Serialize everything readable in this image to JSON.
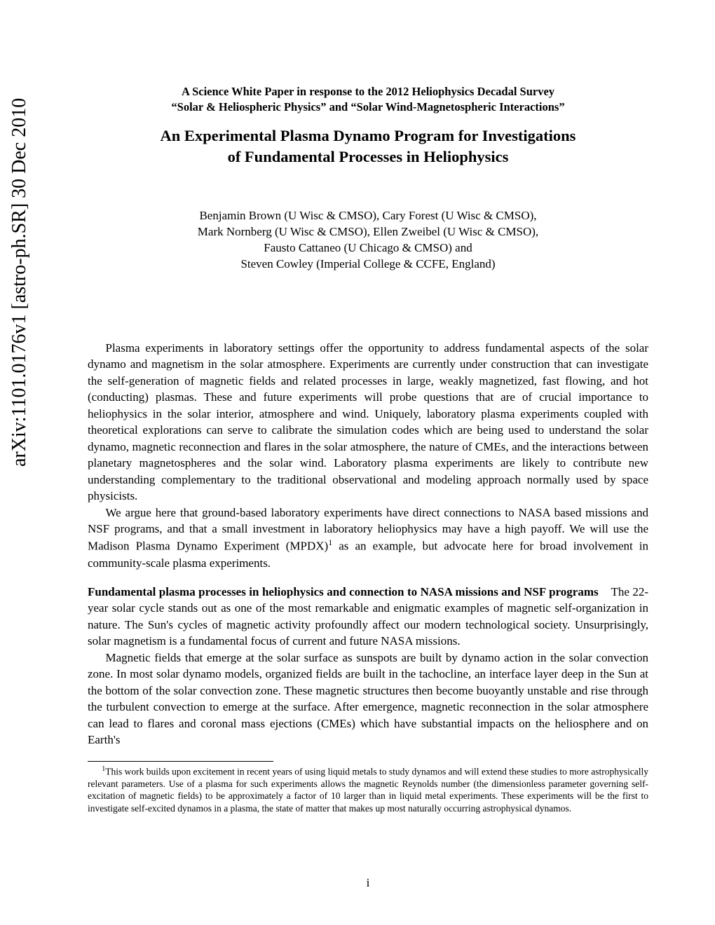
{
  "arxiv": "arXiv:1101.0176v1  [astro-ph.SR]  30 Dec 2010",
  "header": {
    "line1": "A Science White Paper in response to the 2012 Heliophysics Decadal Survey",
    "line2": "“Solar & Heliospheric Physics” and “Solar Wind-Magnetospheric Interactions”"
  },
  "title": {
    "line1": "An Experimental Plasma Dynamo Program for Investigations",
    "line2": "of Fundamental Processes in Heliophysics"
  },
  "authors": {
    "line1": "Benjamin Brown (U Wisc & CMSO), Cary Forest (U Wisc & CMSO),",
    "line2": "Mark Nornberg (U Wisc & CMSO), Ellen Zweibel (U Wisc & CMSO),",
    "line3": "Fausto Cattaneo (U Chicago & CMSO) and",
    "line4": "Steven Cowley (Imperial College & CCFE, England)"
  },
  "abstract": {
    "p1": "Plasma experiments in laboratory settings offer the opportunity to address fundamental aspects of the solar dynamo and magnetism in the solar atmosphere. Experiments are currently under construction that can investigate the self-generation of magnetic fields and related processes in large, weakly magnetized, fast flowing, and hot (conducting) plasmas. These and future experiments will probe questions that are of crucial importance to heliophysics in the solar interior, atmosphere and wind. Uniquely, laboratory plasma experiments coupled with theoretical explorations can serve to calibrate the simulation codes which are being used to understand the solar dynamo, magnetic reconnection and flares in the solar atmosphere, the nature of CMEs, and the interactions between planetary magnetospheres and the solar wind. Laboratory plasma experiments are likely to contribute new understanding complementary to the traditional observational and modeling approach normally used by space physicists.",
    "p2a": "We argue here that ground-based laboratory experiments have direct connections to NASA based missions and NSF programs, and that a small investment in laboratory heliophysics may have a high payoff. We will use the Madison Plasma Dynamo Experiment (MPDX)",
    "p2b": " as an example, but advocate here for broad involvement in community-scale plasma experiments."
  },
  "section": {
    "heading": "Fundamental plasma processes in heliophysics and connection to NASA missions and NSF programs",
    "p1": "The 22-year solar cycle stands out as one of the most remarkable and enigmatic examples of magnetic self-organization in nature. The Sun's cycles of magnetic activity profoundly affect our modern technological society. Unsurprisingly, solar magnetism is a fundamental focus of current and future NASA missions.",
    "p2": "Magnetic fields that emerge at the solar surface as sunspots are built by dynamo action in the solar convection zone. In most solar dynamo models, organized fields are built in the tachocline, an interface layer deep in the Sun at the bottom of the solar convection zone. These magnetic structures then become buoyantly unstable and rise through the turbulent convection to emerge at the surface. After emergence, magnetic reconnection in the solar atmosphere can lead to flares and coronal mass ejections (CMEs) which have substantial impacts on the heliosphere and on Earth's"
  },
  "footnote": {
    "marker": "1",
    "text": "This work builds upon excitement in recent years of using liquid metals to study dynamos and will extend these studies to more astrophysically relevant parameters. Use of a plasma for such experiments allows the magnetic Reynolds number (the dimensionless parameter governing self-excitation of magnetic fields) to be approximately a factor of 10 larger than in liquid metal experiments. These experiments will be the first to investigate self-excited dynamos in a plasma, the state of matter that makes up most naturally occurring astrophysical dynamos."
  },
  "page_number": "i",
  "layout": {
    "page_number_top": 1130
  },
  "colors": {
    "background": "#ffffff",
    "text": "#000000"
  },
  "typography": {
    "body_fontsize": 17,
    "title_fontsize": 22.5,
    "header_fontsize": 16.5,
    "footnote_fontsize": 13.5,
    "arxiv_fontsize": 28,
    "font_family": "Times New Roman"
  }
}
